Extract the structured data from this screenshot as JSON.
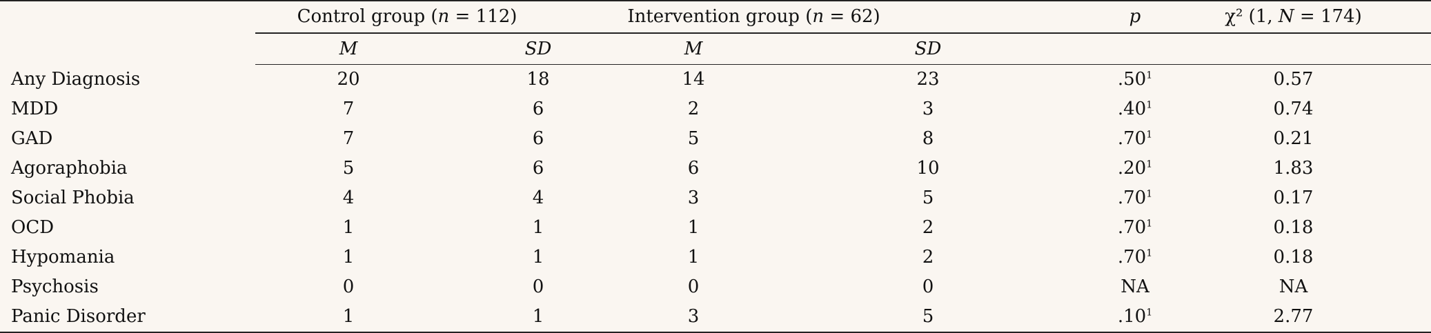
{
  "header": {
    "control_group": "Control group (",
    "control_n_label": "n",
    "control_n_value": " = 112)",
    "intervention_group": "Intervention group (",
    "intervention_n_label": "n",
    "intervention_n_value": " = 62)",
    "p_label": "p",
    "chi_label_prefix": "χ² (1, ",
    "chi_N": "N",
    "chi_label_suffix": " = 174)",
    "m_label": "M",
    "sd_label": "SD"
  },
  "rows": [
    {
      "label": "Any Diagnosis",
      "control_m": "20",
      "control_sd": "18",
      "intervention_m": "14",
      "intervention_sd": "23",
      "p": ".50",
      "p_sup": "1",
      "chi": "0.57"
    },
    {
      "label": "MDD",
      "control_m": "7",
      "control_sd": "6",
      "intervention_m": "2",
      "intervention_sd": "3",
      "p": ".40",
      "p_sup": "1",
      "chi": "0.74"
    },
    {
      "label": "GAD",
      "control_m": "7",
      "control_sd": "6",
      "intervention_m": "5",
      "intervention_sd": "8",
      "p": ".70",
      "p_sup": "1",
      "chi": "0.21"
    },
    {
      "label": "Agoraphobia",
      "control_m": "5",
      "control_sd": "6",
      "intervention_m": "6",
      "intervention_sd": "10",
      "p": ".20",
      "p_sup": "1",
      "chi": "1.83"
    },
    {
      "label": "Social Phobia",
      "control_m": "4",
      "control_sd": "4",
      "intervention_m": "3",
      "intervention_sd": "5",
      "p": ".70",
      "p_sup": "1",
      "chi": "0.17"
    },
    {
      "label": "OCD",
      "control_m": "1",
      "control_sd": "1",
      "intervention_m": "1",
      "intervention_sd": "2",
      "p": ".70",
      "p_sup": "1",
      "chi": "0.18"
    },
    {
      "label": "Hypomania",
      "control_m": "1",
      "control_sd": "1",
      "intervention_m": "1",
      "intervention_sd": "2",
      "p": ".70",
      "p_sup": "1",
      "chi": "0.18"
    },
    {
      "label": "Psychosis",
      "control_m": "0",
      "control_sd": "0",
      "intervention_m": "0",
      "intervention_sd": "0",
      "p": "NA",
      "p_sup": "",
      "chi": "NA"
    },
    {
      "label": "Panic Disorder",
      "control_m": "1",
      "control_sd": "1",
      "intervention_m": "3",
      "intervention_sd": "5",
      "p": ".10",
      "p_sup": "1",
      "chi": "2.77"
    }
  ]
}
